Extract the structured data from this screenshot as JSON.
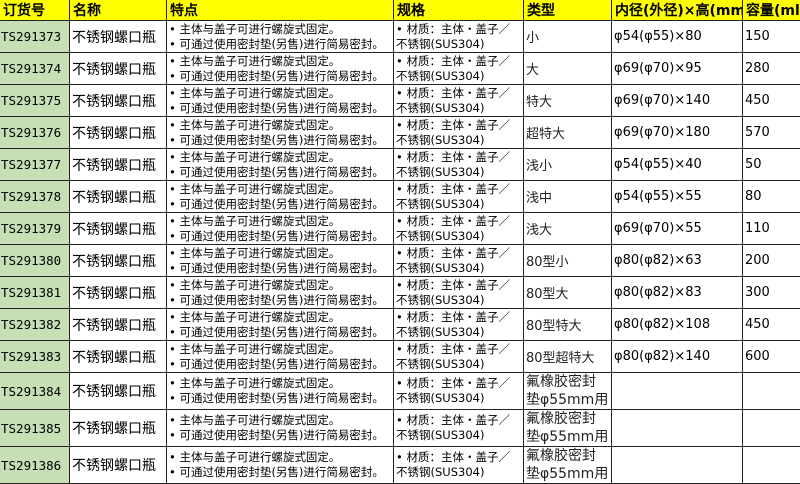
{
  "headers": [
    "订货号",
    "名称",
    "特点",
    "规格",
    "类型",
    "内径(外径)×高(mm)",
    "容量(ml)"
  ],
  "features": [
    "• 主体与盖子可进行螺旋式固定。",
    "• 可通过使用密封垫(另售)进行简易密封。"
  ],
  "spec": [
    "• 材质：主体・盖子／",
    "不锈钢(SUS304)"
  ],
  "rows": [
    {
      "code": "TS291373",
      "name": "不锈钢螺口瓶",
      "type": "小",
      "dim": "φ54(φ55)×80",
      "cap": "150"
    },
    {
      "code": "TS291374",
      "name": "不锈钢螺口瓶",
      "type": "大",
      "dim": "φ69(φ70)×95",
      "cap": "280"
    },
    {
      "code": "TS291375",
      "name": "不锈钢螺口瓶",
      "type": "特大",
      "dim": "φ69(φ70)×140",
      "cap": "450"
    },
    {
      "code": "TS291376",
      "name": "不锈钢螺口瓶",
      "type": "超特大",
      "dim": "φ69(φ70)×180",
      "cap": "570"
    },
    {
      "code": "TS291377",
      "name": "不锈钢螺口瓶",
      "type": "浅小",
      "dim": "φ54(φ55)×40",
      "cap": "50"
    },
    {
      "code": "TS291378",
      "name": "不锈钢螺口瓶",
      "type": "浅中",
      "dim": "φ54(φ55)×55",
      "cap": "80"
    },
    {
      "code": "TS291379",
      "name": "不锈钢螺口瓶",
      "type": "浅大",
      "dim": "φ69(φ70)×55",
      "cap": "110"
    },
    {
      "code": "TS291380",
      "name": "不锈钢螺口瓶",
      "type": "80型小",
      "dim": "φ80(φ82)×63",
      "cap": "200"
    },
    {
      "code": "TS291381",
      "name": "不锈钢螺口瓶",
      "type": "80型大",
      "dim": "φ80(φ82)×83",
      "cap": "300"
    },
    {
      "code": "TS291382",
      "name": "不锈钢螺口瓶",
      "type": "80型特大",
      "dim": "φ80(φ82)×108",
      "cap": "450"
    },
    {
      "code": "TS291383",
      "name": "不锈钢螺口瓶",
      "type": "80型超特大",
      "dim": "φ80(φ82)×140",
      "cap": "600"
    },
    {
      "code": "TS291384",
      "name": "不锈钢螺口瓶",
      "type": "氟橡胶密封垫φ55mm用",
      "dim": "",
      "cap": ""
    },
    {
      "code": "TS291385",
      "name": "不锈钢螺口瓶",
      "type": "氟橡胶密封垫φ55mm用",
      "dim": "",
      "cap": ""
    },
    {
      "code": "TS291386",
      "name": "不锈钢螺口瓶",
      "type": "氟橡胶密封垫φ55mm用",
      "dim": "",
      "cap": ""
    }
  ],
  "colors": {
    "header": "#ffff00",
    "code_cell": "#c6dfb4"
  }
}
